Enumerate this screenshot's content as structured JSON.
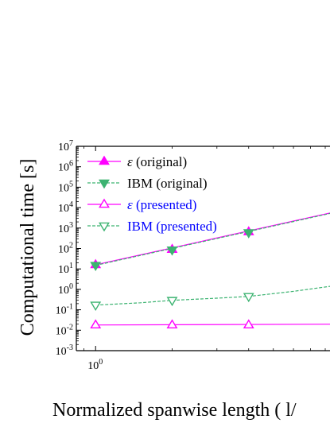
{
  "chart_data": {
    "type": "line",
    "xscale": "log",
    "yscale": "log",
    "xlim": [
      0.84,
      10
    ],
    "ylim": [
      0.001,
      10000000
    ],
    "xlabel": "Normalized spanwise length ( l/",
    "ylabel": "Computational time [s]",
    "xticks": [
      {
        "base": "10",
        "exp": "0"
      }
    ],
    "yticks": [
      {
        "base": "10",
        "exp": "-3",
        "value": 0.001
      },
      {
        "base": "10",
        "exp": "-2",
        "value": 0.01
      },
      {
        "base": "10",
        "exp": "-1",
        "value": 0.1
      },
      {
        "base": "10",
        "exp": "0",
        "value": 1
      },
      {
        "base": "10",
        "exp": "1",
        "value": 10
      },
      {
        "base": "10",
        "exp": "2",
        "value": 100
      },
      {
        "base": "10",
        "exp": "3",
        "value": 1000
      },
      {
        "base": "10",
        "exp": "4",
        "value": 10000
      },
      {
        "base": "10",
        "exp": "5",
        "value": 100000
      },
      {
        "base": "10",
        "exp": "6",
        "value": 1000000
      },
      {
        "base": "10",
        "exp": "7",
        "value": 10000000
      }
    ],
    "legend_position": "top-left",
    "series": [
      {
        "name_symbol": "ε",
        "name": " (original)",
        "color": "#ff00ff",
        "text_color": "#000000",
        "marker": "triangle-up-filled",
        "line": "solid",
        "points": [
          [
            1,
            16
          ],
          [
            2,
            90
          ],
          [
            4,
            650
          ]
        ],
        "fit": [
          [
            1,
            16
          ],
          [
            10,
            9000
          ]
        ]
      },
      {
        "name": "IBM (original)",
        "color": "#3cb371",
        "text_color": "#000000",
        "marker": "triangle-down-filled",
        "line": "dashed",
        "points": [
          [
            1,
            15
          ],
          [
            2,
            85
          ],
          [
            4,
            600
          ]
        ],
        "fit": [
          [
            1,
            15
          ],
          [
            10,
            8500
          ]
        ]
      },
      {
        "name_symbol": "ε",
        "name": " (presented)",
        "color": "#ff00ff",
        "text_color": "#0000ff",
        "marker": "triangle-up-open",
        "line": "solid",
        "points": [
          [
            1,
            0.018
          ],
          [
            2,
            0.018
          ],
          [
            4,
            0.018
          ]
        ],
        "fit": [
          [
            1,
            0.018
          ],
          [
            10,
            0.02
          ]
        ]
      },
      {
        "name": "IBM (presented)",
        "color": "#3cb371",
        "text_color": "#0000ff",
        "marker": "triangle-down-open",
        "line": "dashed",
        "points": [
          [
            1,
            0.17
          ],
          [
            2,
            0.29
          ],
          [
            4,
            0.45
          ]
        ],
        "fit": [
          [
            1,
            0.17
          ],
          [
            1.5,
            0.22
          ],
          [
            2,
            0.29
          ],
          [
            3,
            0.37
          ],
          [
            4,
            0.45
          ],
          [
            6,
            0.8
          ],
          [
            10,
            1.9
          ]
        ]
      }
    ]
  }
}
